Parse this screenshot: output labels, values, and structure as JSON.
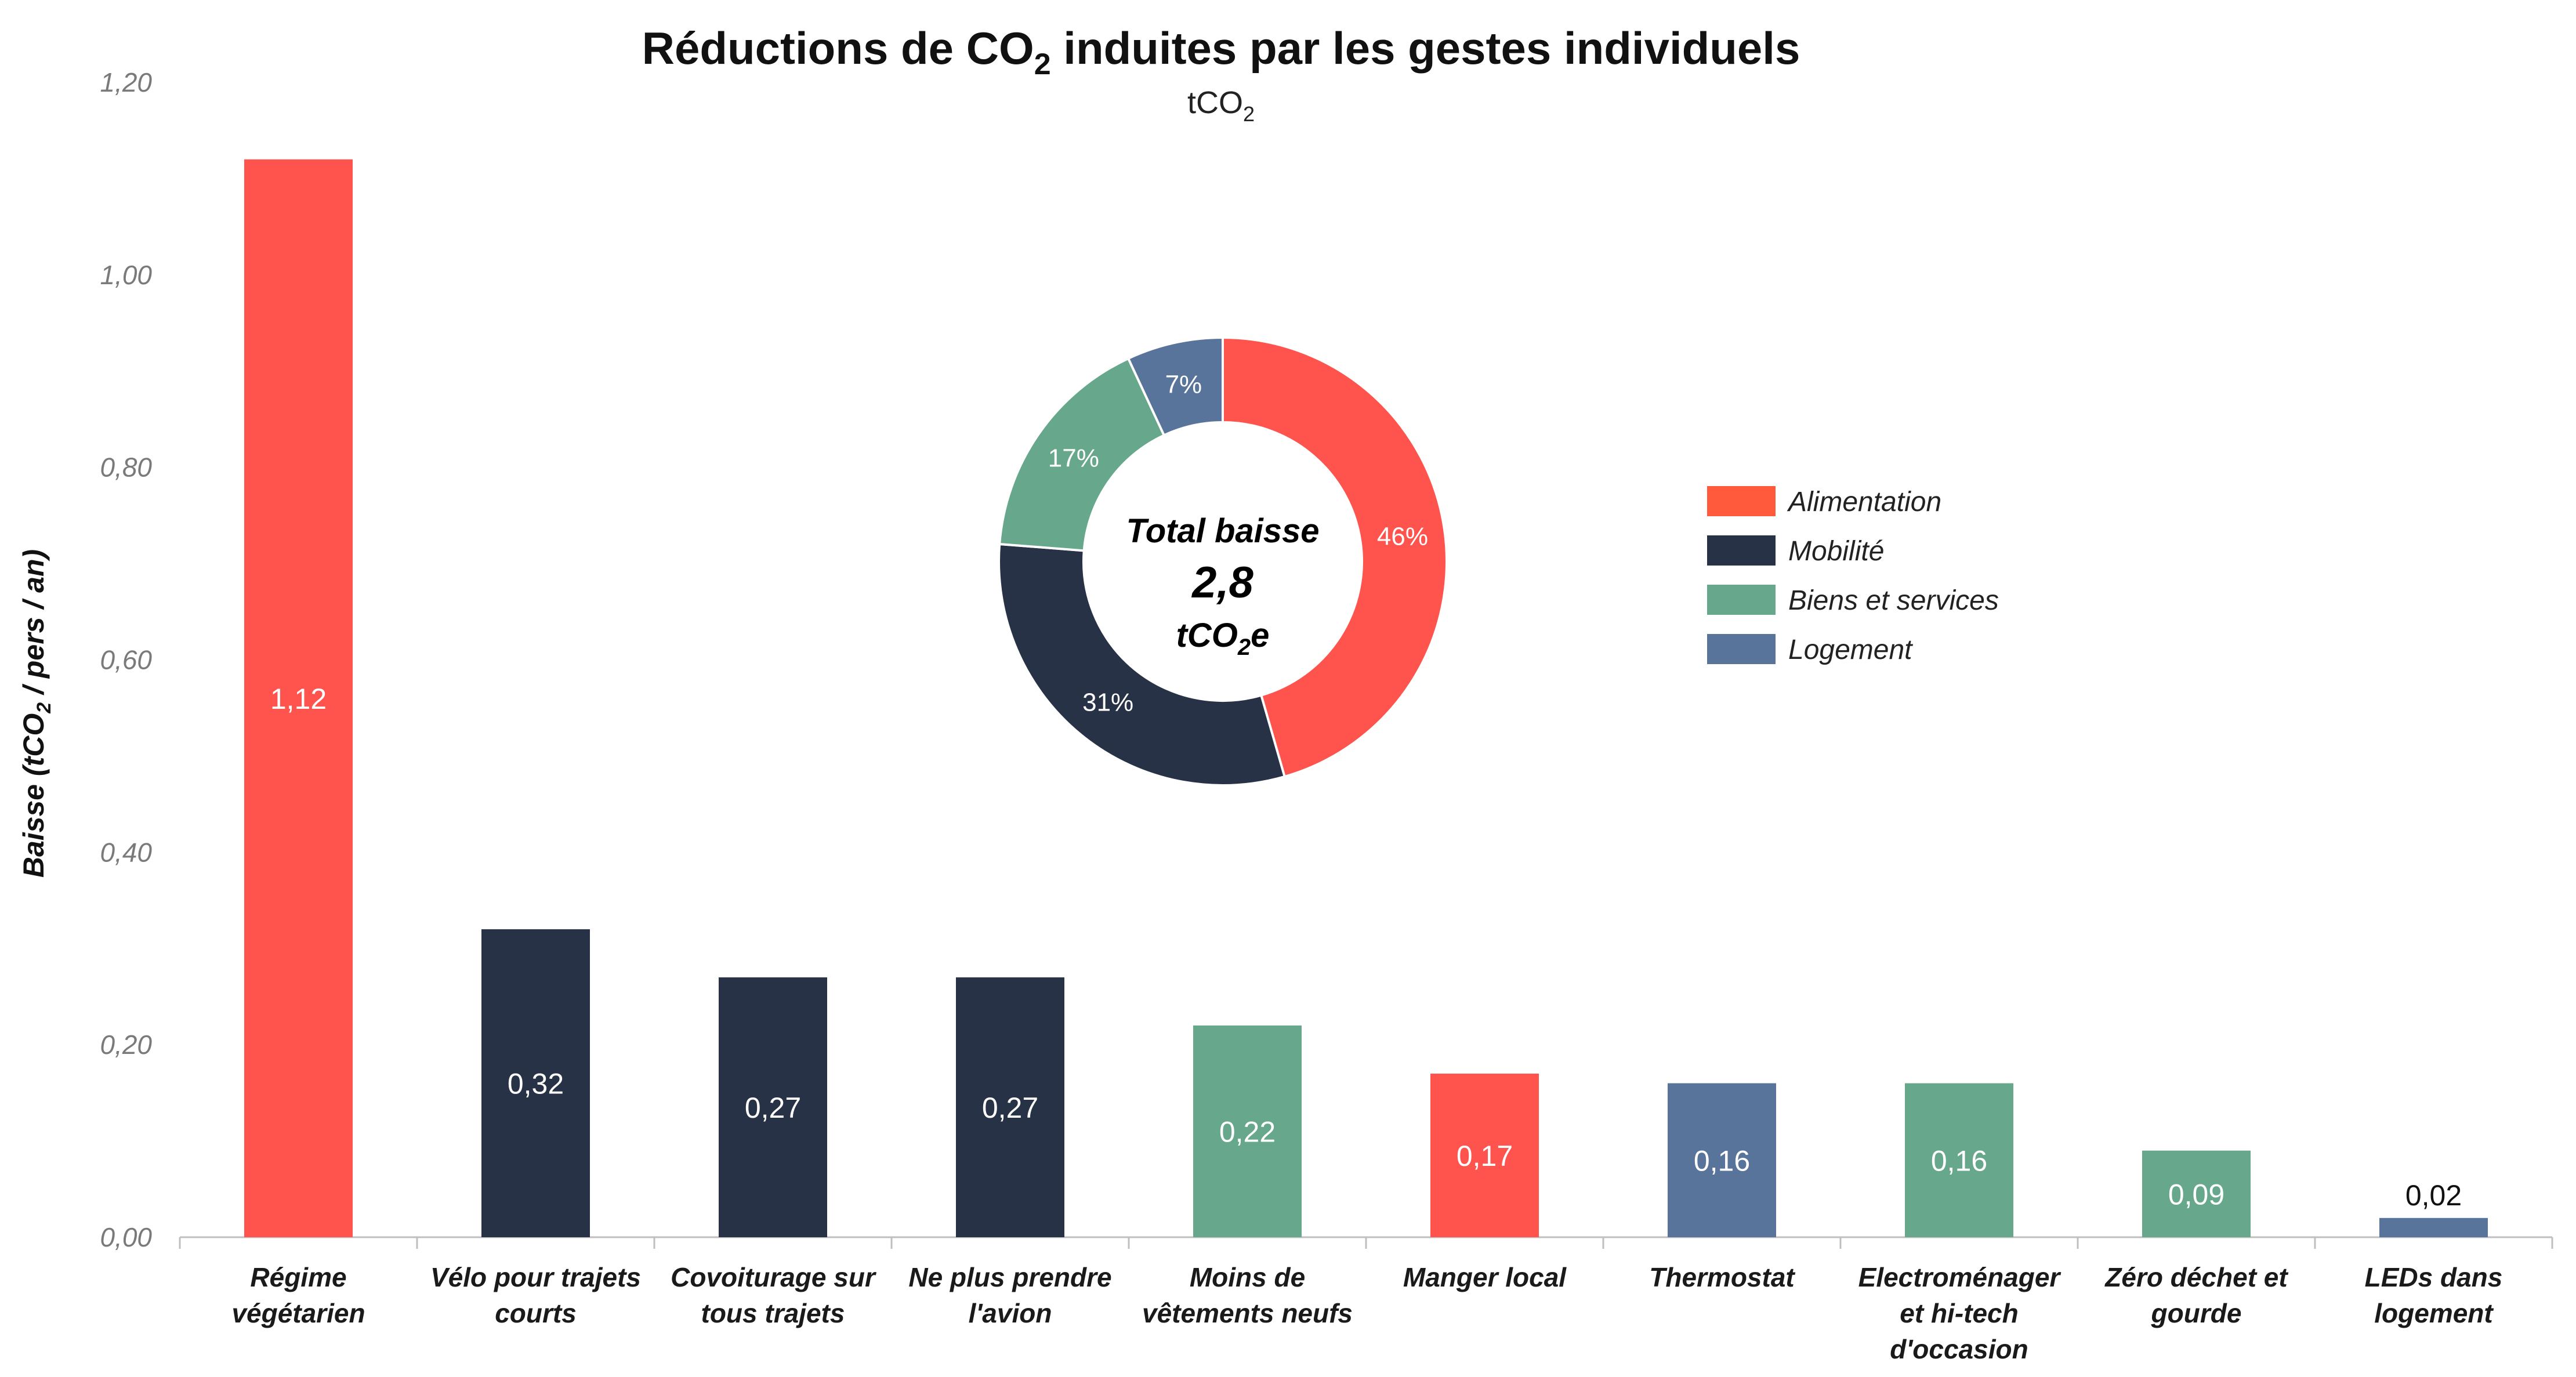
{
  "chart_data": {
    "type": "bar",
    "title_main": "Réductions de CO",
    "title_sub": "2",
    "title_end": " induites par les gestes individuels",
    "subtitle_main": "tCO",
    "subtitle_sub": "2",
    "ylabel_main": "Baisse (tCO",
    "ylabel_sub": "2",
    "ylabel_end": " / pers / an)",
    "ylim": [
      0,
      1.2
    ],
    "yticks": [
      "0,00",
      "0,20",
      "0,40",
      "0,60",
      "0,80",
      "1,00",
      "1,20"
    ],
    "categories": [
      [
        "Régime",
        "végétarien"
      ],
      [
        "Vélo pour trajets",
        "courts"
      ],
      [
        "Covoiturage sur",
        "tous trajets"
      ],
      [
        "Ne plus prendre",
        "l'avion"
      ],
      [
        "Moins de",
        "vêtements neufs"
      ],
      [
        "Manger local"
      ],
      [
        "Thermostat"
      ],
      [
        "Electroménager",
        "et hi-tech",
        "d'occasion"
      ],
      [
        "Zéro déchet et",
        "gourde"
      ],
      [
        "LEDs dans",
        "logement"
      ]
    ],
    "values": [
      1.12,
      0.32,
      0.27,
      0.27,
      0.22,
      0.17,
      0.16,
      0.16,
      0.09,
      0.02
    ],
    "value_labels": [
      "1,12",
      "0,32",
      "0,27",
      "0,27",
      "0,22",
      "0,17",
      "0,16",
      "0,16",
      "0,09",
      "0,02"
    ],
    "bar_groups": [
      "Alimentation",
      "Mobilité",
      "Mobilité",
      "Mobilité",
      "Biens et services",
      "Alimentation",
      "Logement",
      "Biens et services",
      "Biens et services",
      "Logement"
    ],
    "groups": [
      {
        "name": "Alimentation",
        "color": "#ff544d",
        "legend_color": "#ff5a3c"
      },
      {
        "name": "Mobilité",
        "color": "#283246"
      },
      {
        "name": "Biens et services",
        "color": "#67a88d"
      },
      {
        "name": "Logement",
        "color": "#58749b"
      }
    ],
    "donut": {
      "slices": [
        {
          "label": "46%",
          "value": 46,
          "color": "#ff544d"
        },
        {
          "label": "31%",
          "value": 31,
          "color": "#283246"
        },
        {
          "label": "17%",
          "value": 17,
          "color": "#67a88d"
        },
        {
          "label": "7%",
          "value": 7,
          "color": "#58749b"
        }
      ],
      "center_line1": "Total baisse",
      "center_line2": "2,8",
      "center_line3_main": "tCO",
      "center_line3_sub": "2",
      "center_line3_end": "e"
    },
    "legend_position": "right"
  }
}
